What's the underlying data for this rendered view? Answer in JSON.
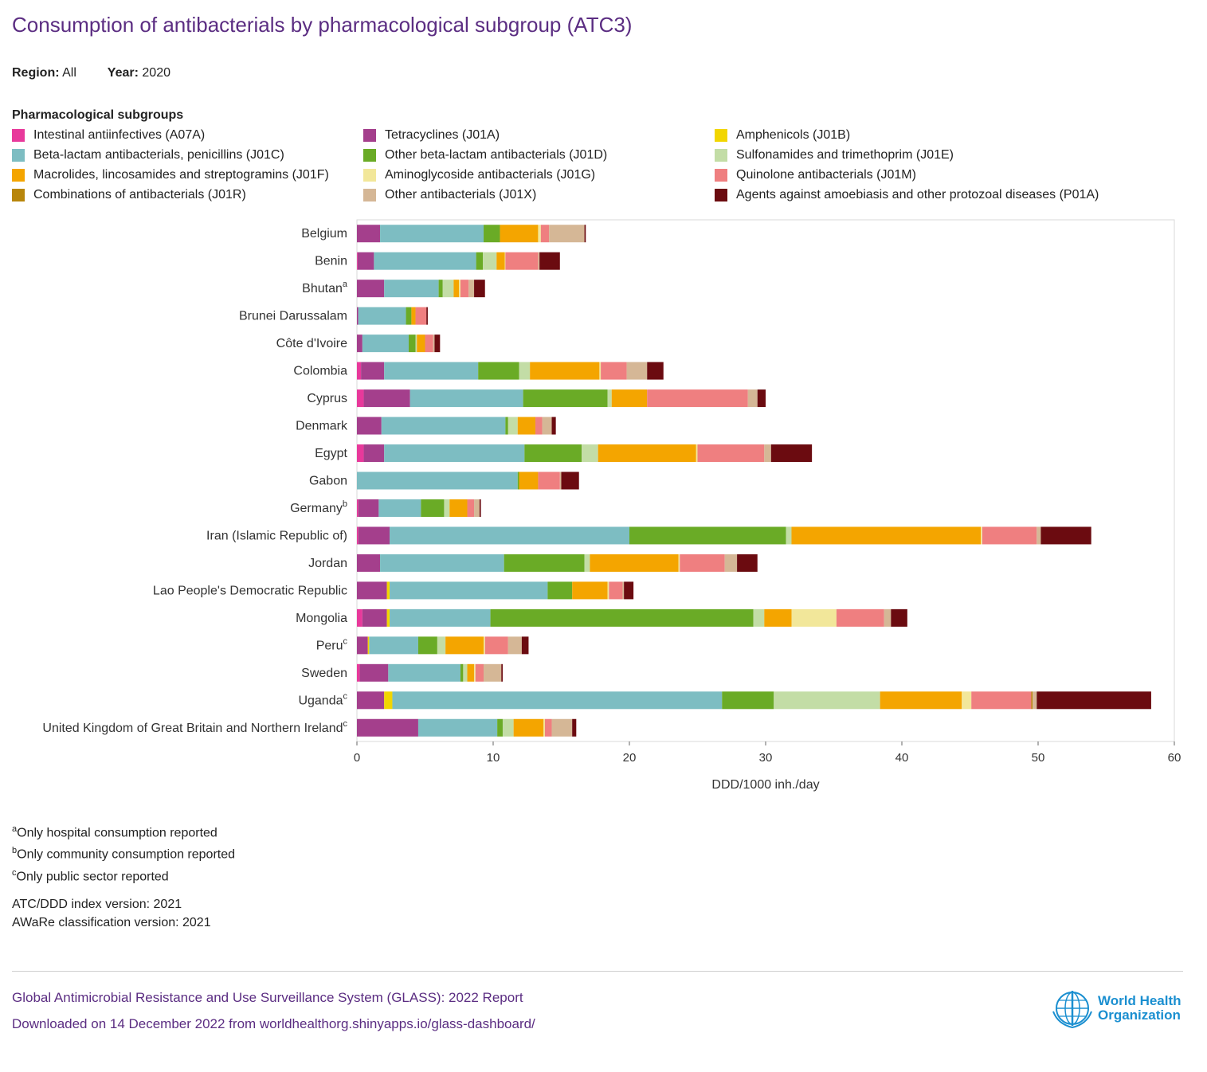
{
  "title": "Consumption of antibacterials by pharmacological subgroup (ATC3)",
  "filters": {
    "region_label": "Region:",
    "region_value": "All",
    "year_label": "Year:",
    "year_value": "2020"
  },
  "legend_title": "Pharmacological subgroups",
  "notes": {
    "a": "Only hospital consumption reported",
    "b": "Only community consumption reported",
    "c": "Only public sector reported"
  },
  "versions": {
    "atc": "ATC/DDD index version: 2021",
    "aware": "AWaRe classification version: 2021"
  },
  "footer": {
    "line1": "Global Antimicrobial Resistance and Use Surveillance System (GLASS): 2022 Report",
    "line2": "Downloaded on 14 December 2022 from worldhealthorg.shinyapps.io/glass-dashboard/"
  },
  "logo": {
    "line1": "World Health",
    "line2": "Organization",
    "icon": "who-emblem-icon"
  },
  "chart_data": {
    "type": "bar",
    "orientation": "horizontal",
    "stacked": true,
    "xlabel": "DDD/1000 inh./day",
    "xlim": [
      0,
      60
    ],
    "xticks": [
      0,
      10,
      20,
      30,
      40,
      50,
      60
    ],
    "legend_placement": "top",
    "series": [
      {
        "name": "Intestinal antiinfectives (A07A)",
        "color": "#e8399b"
      },
      {
        "name": "Tetracyclines (J01A)",
        "color": "#a43f8c"
      },
      {
        "name": "Amphenicols (J01B)",
        "color": "#f2d600"
      },
      {
        "name": "Beta-lactam antibacterials, penicillins (J01C)",
        "color": "#7dbdc2"
      },
      {
        "name": "Other beta-lactam antibacterials (J01D)",
        "color": "#6aab26"
      },
      {
        "name": "Sulfonamides and trimethoprim (J01E)",
        "color": "#c3dda6"
      },
      {
        "name": "Macrolides, lincosamides and streptogramins (J01F)",
        "color": "#f4a500"
      },
      {
        "name": "Aminoglycoside antibacterials (J01G)",
        "color": "#f2e79a"
      },
      {
        "name": "Quinolone antibacterials (J01M)",
        "color": "#ef7f80"
      },
      {
        "name": "Combinations of antibacterials (J01R)",
        "color": "#b8860b"
      },
      {
        "name": "Other antibacterials (J01X)",
        "color": "#d5b796"
      },
      {
        "name": "Agents against amoebiasis and other protozoal diseases (P01A)",
        "color": "#6b0b10"
      }
    ],
    "categories": [
      {
        "name": "Belgium",
        "sup": "",
        "values": [
          0.0,
          1.7,
          0.0,
          7.6,
          1.2,
          0.0,
          2.8,
          0.2,
          0.6,
          0.0,
          2.6,
          0.1
        ]
      },
      {
        "name": "Benin",
        "sup": "",
        "values": [
          0.05,
          1.2,
          0.0,
          7.5,
          0.5,
          1.0,
          0.6,
          0.05,
          2.4,
          0.0,
          0.1,
          1.5
        ]
      },
      {
        "name": "Bhutan",
        "sup": "a",
        "values": [
          0.0,
          2.0,
          0.0,
          4.0,
          0.3,
          0.8,
          0.4,
          0.1,
          0.6,
          0.0,
          0.4,
          0.8
        ]
      },
      {
        "name": "Brunei Darussalam",
        "sup": "",
        "values": [
          0.0,
          0.1,
          0.0,
          3.5,
          0.4,
          0.0,
          0.3,
          0.0,
          0.8,
          0.0,
          0.0,
          0.1
        ]
      },
      {
        "name": "Côte d'Ivoire",
        "sup": "",
        "values": [
          0.0,
          0.4,
          0.0,
          3.4,
          0.5,
          0.1,
          0.6,
          0.0,
          0.6,
          0.0,
          0.1,
          0.4
        ]
      },
      {
        "name": "Colombia",
        "sup": "",
        "values": [
          0.3,
          1.7,
          0.0,
          6.9,
          3.0,
          0.8,
          5.1,
          0.1,
          1.9,
          0.0,
          1.5,
          1.2
        ]
      },
      {
        "name": "Cyprus",
        "sup": "",
        "values": [
          0.5,
          3.4,
          0.0,
          8.3,
          6.2,
          0.3,
          2.6,
          0.0,
          7.4,
          0.0,
          0.7,
          0.6
        ]
      },
      {
        "name": "Denmark",
        "sup": "",
        "values": [
          0.0,
          1.8,
          0.0,
          9.1,
          0.2,
          0.7,
          1.3,
          0.0,
          0.5,
          0.0,
          0.7,
          0.3
        ]
      },
      {
        "name": "Egypt",
        "sup": "",
        "values": [
          0.5,
          1.5,
          0.0,
          10.3,
          4.2,
          1.2,
          7.2,
          0.1,
          4.9,
          0.0,
          0.5,
          3.0
        ]
      },
      {
        "name": "Gabon",
        "sup": "",
        "values": [
          0.0,
          0.0,
          0.0,
          11.8,
          0.1,
          0.0,
          1.4,
          0.0,
          1.6,
          0.0,
          0.1,
          1.3
        ]
      },
      {
        "name": "Germany",
        "sup": "b",
        "values": [
          0.1,
          1.5,
          0.0,
          3.1,
          1.7,
          0.4,
          1.3,
          0.0,
          0.5,
          0.0,
          0.4,
          0.1
        ]
      },
      {
        "name": "Iran (Islamic Republic of)",
        "sup": "",
        "values": [
          0.1,
          2.3,
          0.0,
          17.6,
          11.5,
          0.4,
          13.9,
          0.1,
          4.0,
          0.0,
          0.3,
          3.7
        ]
      },
      {
        "name": "Jordan",
        "sup": "",
        "values": [
          0.0,
          1.7,
          0.0,
          9.1,
          5.9,
          0.4,
          6.5,
          0.1,
          3.3,
          0.0,
          0.9,
          1.5
        ]
      },
      {
        "name": "Lao People's Democratic Republic",
        "sup": "",
        "values": [
          0.0,
          2.2,
          0.2,
          11.6,
          1.8,
          0.0,
          2.6,
          0.1,
          1.0,
          0.0,
          0.1,
          0.7
        ]
      },
      {
        "name": "Mongolia",
        "sup": "",
        "values": [
          0.4,
          1.8,
          0.2,
          7.4,
          19.3,
          0.8,
          2.0,
          3.3,
          3.5,
          0.0,
          0.5,
          1.2
        ]
      },
      {
        "name": "Peru",
        "sup": "c",
        "values": [
          0.0,
          0.8,
          0.1,
          3.6,
          1.4,
          0.6,
          2.8,
          0.1,
          1.7,
          0.0,
          1.0,
          0.5
        ]
      },
      {
        "name": "Sweden",
        "sup": "",
        "values": [
          0.2,
          2.1,
          0.0,
          5.3,
          0.2,
          0.3,
          0.5,
          0.1,
          0.6,
          0.0,
          1.3,
          0.1
        ]
      },
      {
        "name": "Uganda",
        "sup": "c",
        "values": [
          0.0,
          2.0,
          0.6,
          24.2,
          3.8,
          7.8,
          6.0,
          0.7,
          4.4,
          0.1,
          0.3,
          8.4
        ]
      },
      {
        "name": "United Kingdom of Great Britain and Northern Ireland",
        "sup": "c",
        "values": [
          0.0,
          4.5,
          0.0,
          5.8,
          0.4,
          0.8,
          2.2,
          0.1,
          0.5,
          0.0,
          1.5,
          0.3
        ]
      }
    ]
  }
}
